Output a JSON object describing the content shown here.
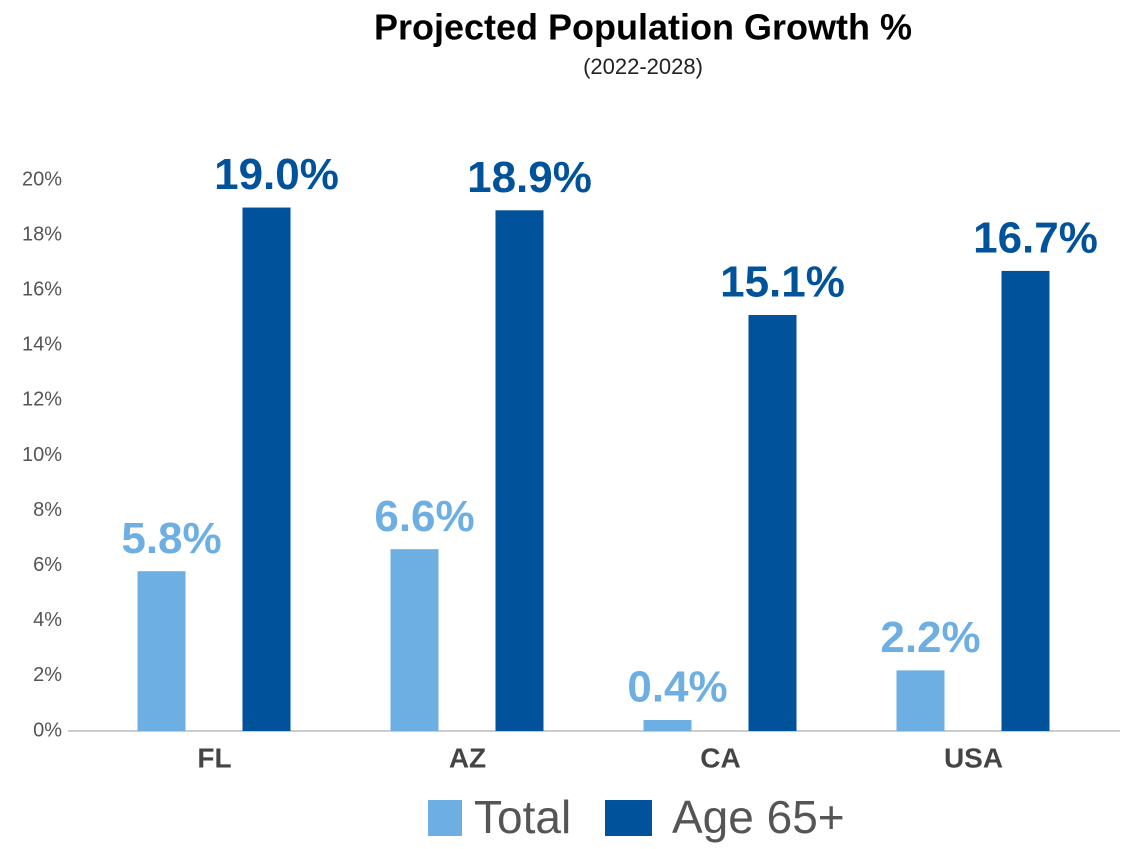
{
  "chart_data": {
    "type": "bar",
    "title": "Projected Population Growth %",
    "subtitle": "(2022-2028)",
    "categories": [
      "FL",
      "AZ",
      "CA",
      "USA"
    ],
    "series": [
      {
        "name": "Total",
        "color": "#6daee3",
        "values": [
          5.8,
          6.6,
          0.4,
          2.2
        ],
        "value_labels": [
          "5.8%",
          "6.6%",
          "0.4%",
          "2.2%"
        ]
      },
      {
        "name": "Age 65+",
        "color": "#00529b",
        "values": [
          19.0,
          18.9,
          15.1,
          16.7
        ],
        "value_labels": [
          "19.0%",
          "18.9%",
          "15.1%",
          "16.7%"
        ]
      }
    ],
    "ylim": [
      0,
      20
    ],
    "yticks": [
      {
        "value": 0,
        "label": "0%"
      },
      {
        "value": 2,
        "label": "2%"
      },
      {
        "value": 4,
        "label": "4%"
      },
      {
        "value": 6,
        "label": "6%"
      },
      {
        "value": 8,
        "label": "8%"
      },
      {
        "value": 10,
        "label": "10%"
      },
      {
        "value": 12,
        "label": "12%"
      },
      {
        "value": 14,
        "label": "14%"
      },
      {
        "value": 16,
        "label": "16%"
      },
      {
        "value": 18,
        "label": "18%"
      },
      {
        "value": 20,
        "label": "20%"
      }
    ],
    "grid": false
  }
}
